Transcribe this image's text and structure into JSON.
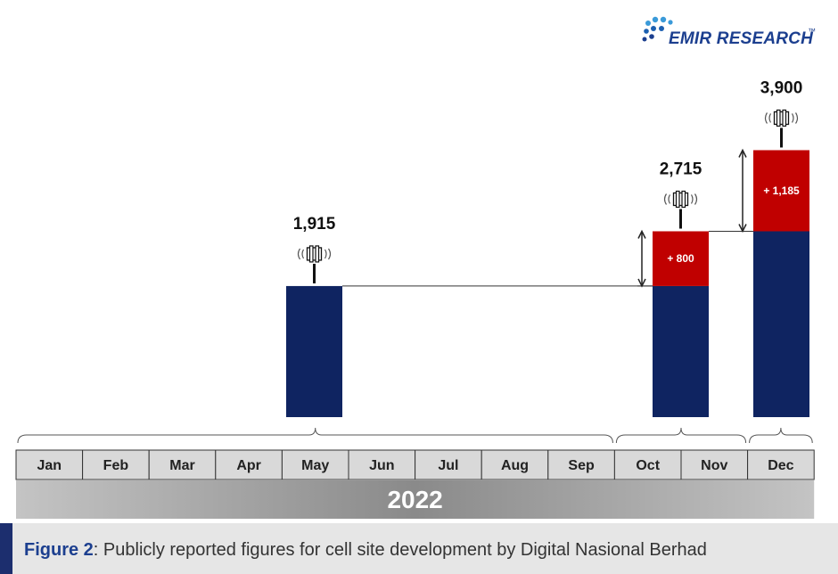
{
  "brand": {
    "name": "EMIR RESEARCH",
    "tm": "™"
  },
  "caption": {
    "label": "Figure 2",
    "text": ": Publicly reported figures for cell site development by Digital Nasional Berhad"
  },
  "colors": {
    "base": "#0f2461",
    "increment": "#c00000",
    "year_bar": "#8a8a8a",
    "month_box": "#d9d9d9",
    "caption_bg": "#e6e6e6",
    "caption_accent": "#1c2e6e"
  },
  "chart_data": {
    "type": "bar",
    "title": "",
    "xlabel": "",
    "ylabel": "",
    "year": "2022",
    "months": [
      "Jan",
      "Feb",
      "Mar",
      "Apr",
      "May",
      "Jun",
      "Jul",
      "Aug",
      "Sep",
      "Oct",
      "Nov",
      "Dec"
    ],
    "bars": [
      {
        "category": "May",
        "total": 1915,
        "total_label": "1,915",
        "base": 1915,
        "increment": 0,
        "increment_label": ""
      },
      {
        "category": "Nov",
        "total": 2715,
        "total_label": "2,715",
        "base": 1915,
        "increment": 800,
        "increment_label": "+ 800"
      },
      {
        "category": "Dec",
        "total": 3900,
        "total_label": "3,900",
        "base": 2715,
        "increment": 1185,
        "increment_label": "+ 1,185"
      }
    ],
    "ylim": [
      0,
      3900
    ],
    "grid": false,
    "legend": "none"
  }
}
